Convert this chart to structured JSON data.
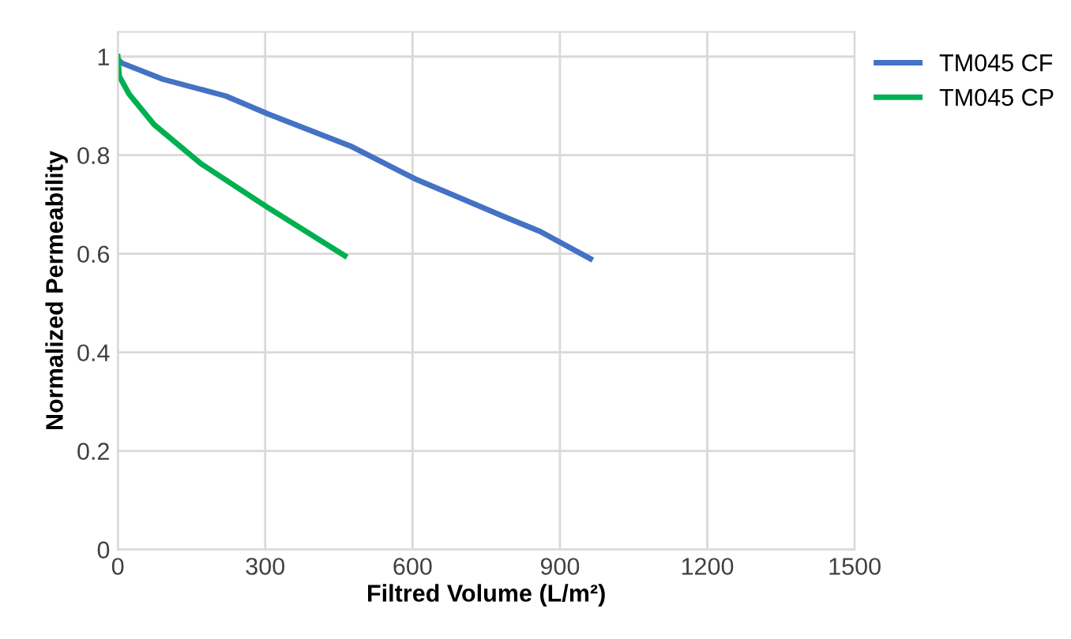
{
  "chart_data": {
    "type": "line",
    "xlabel": "Filtred Volume (L/m²)",
    "ylabel": "Normalized Permeability",
    "xlim": [
      0,
      1500
    ],
    "xticks": [
      0,
      300,
      600,
      900,
      1200,
      1500
    ],
    "ylim": [
      0,
      1.05
    ],
    "yticks": [
      0,
      0.2,
      0.4,
      0.6,
      0.8,
      1
    ],
    "grid": true,
    "legend": "top right",
    "marker": "none",
    "line_style": "solid",
    "series": [
      {
        "name": "TM045 CF",
        "color": "#4472c4",
        "x": [
          0,
          8,
          92,
          220,
          305,
          477,
          605,
          785,
          860,
          962
        ],
        "values": [
          0.995,
          0.987,
          0.954,
          0.92,
          0.884,
          0.817,
          0.752,
          0.676,
          0.645,
          0.59
        ]
      },
      {
        "name": "TM045 CP",
        "color": "#00b050",
        "x": [
          0,
          3,
          23,
          74,
          169,
          305,
          462
        ],
        "values": [
          1.0,
          0.96,
          0.924,
          0.862,
          0.783,
          0.694,
          0.596
        ]
      }
    ]
  }
}
